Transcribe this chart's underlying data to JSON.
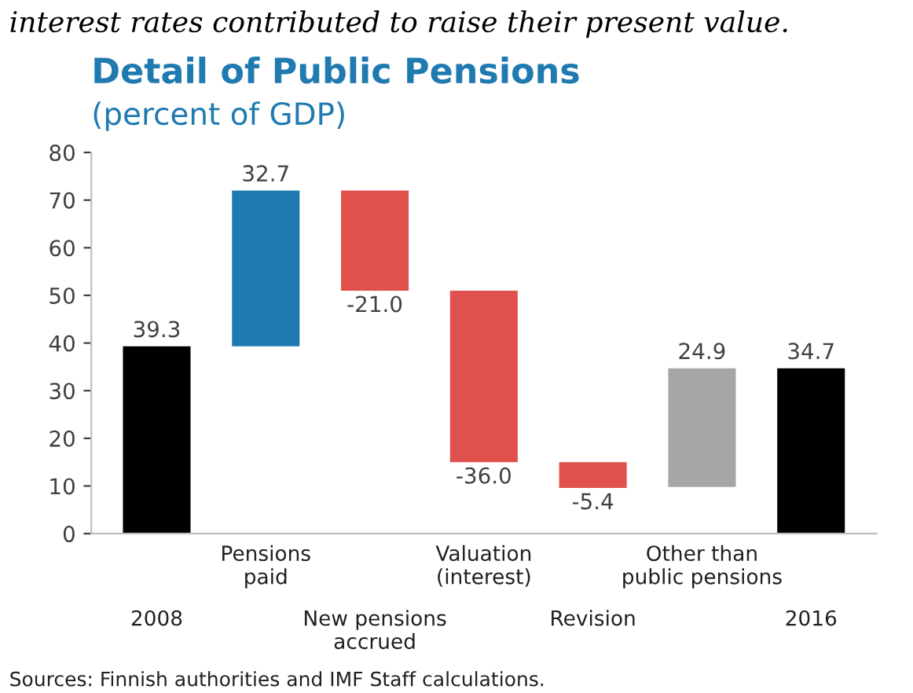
{
  "chart_data": {
    "type": "bar",
    "title": "Detail of Public Pensions",
    "subtitle": "(percent of GDP)",
    "categories": [
      "2008",
      "Pensions\npaid",
      "New pensions\naccrued",
      "Valuation\n(interest)",
      "Revision",
      "Other than\npublic pensions",
      "2016"
    ],
    "values": [
      39.3,
      32.7,
      -21.0,
      -36.0,
      -5.4,
      24.9,
      34.7
    ],
    "base": [
      0,
      39.3,
      72.0,
      51.0,
      15.0,
      9.8,
      0
    ],
    "colors": [
      "#000000",
      "#1f7ab0",
      "#e0504c",
      "#e0504c",
      "#e0504c",
      "#a6a6a6",
      "#000000"
    ],
    "value_labels": [
      "39.3",
      "32.7",
      "-21.0",
      "-36.0",
      "-5.4",
      "24.9",
      "34.7"
    ],
    "ylim": [
      0,
      80
    ],
    "yticks": [
      0,
      10,
      20,
      30,
      40,
      50,
      60,
      70,
      80
    ],
    "grid": false,
    "annotations": [
      "interest rates contributed to raise their present value.",
      "Sources: Finnish authorities and IMF Staff calculations."
    ]
  }
}
